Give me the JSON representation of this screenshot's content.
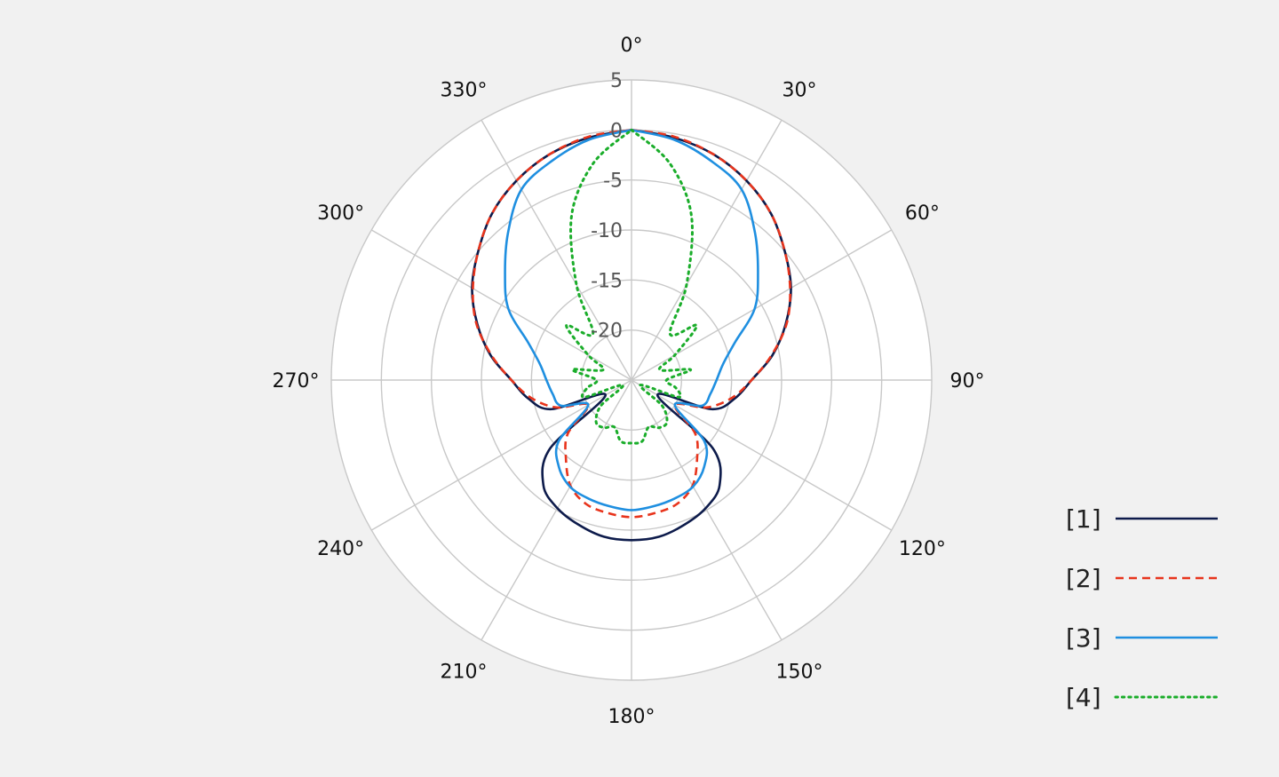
{
  "chart_data": {
    "type": "polar-line",
    "title": "",
    "radial_unit": "",
    "r_min": -25,
    "r_max": 5,
    "r_ticks": [
      5,
      0,
      -5,
      -10,
      -15,
      -20
    ],
    "r_tick_labels": [
      "5",
      "0",
      "-5",
      "-10",
      "-15",
      "-20"
    ],
    "angle_zero": "top",
    "angle_direction": "clockwise",
    "angle_ticks": [
      0,
      30,
      60,
      90,
      120,
      150,
      180,
      210,
      240,
      270,
      300,
      330
    ],
    "angle_tick_labels": [
      "0°",
      "30°",
      "60°",
      "90°",
      "120°",
      "150°",
      "180°",
      "210°",
      "240°",
      "270°",
      "300°",
      "330°"
    ],
    "grid": true,
    "legend_position": "bottom-right",
    "angles": [
      0,
      10,
      20,
      30,
      40,
      50,
      60,
      70,
      80,
      90,
      100,
      110,
      120,
      130,
      140,
      150,
      160,
      170,
      180
    ],
    "series": [
      {
        "name": "[1]",
        "color": "#0d1b4b",
        "dash": "solid",
        "values": [
          0,
          -0.4,
          -1,
          -2,
          -3.3,
          -5,
          -6.6,
          -8.6,
          -10.7,
          -13,
          -14.5,
          -16.5,
          -22,
          -14.4,
          -11.3,
          -10.2,
          -9.6,
          -9.1,
          -9
        ]
      },
      {
        "name": "[2]",
        "color": "#e8341c",
        "dash": "dashed",
        "values": [
          0,
          -0.3,
          -1,
          -2,
          -3.3,
          -5,
          -6.7,
          -8.5,
          -10.8,
          -13,
          -14.8,
          -17,
          -20,
          -16.7,
          -14.8,
          -12.8,
          -11.8,
          -11.5,
          -11.3
        ]
      },
      {
        "name": "[3]",
        "color": "#1f8fe0",
        "dash": "solid",
        "values": [
          0,
          -0.6,
          -1.7,
          -3,
          -5.8,
          -8.5,
          -10.8,
          -14,
          -15.7,
          -16.5,
          -17,
          -17.5,
          -20,
          -15.5,
          -13.7,
          -12.7,
          -12.4,
          -12.2,
          -12
        ]
      },
      {
        "name": "[4]",
        "color": "#1aad2a",
        "dash": "dotted",
        "values": [
          0,
          -3,
          -7.5,
          -14,
          -19,
          -16.5,
          -20,
          -22,
          -19,
          -21.5,
          -20.5,
          -20,
          -24,
          -21,
          -19.5,
          -19.5,
          -20,
          -18.8,
          -18.7
        ]
      }
    ]
  }
}
